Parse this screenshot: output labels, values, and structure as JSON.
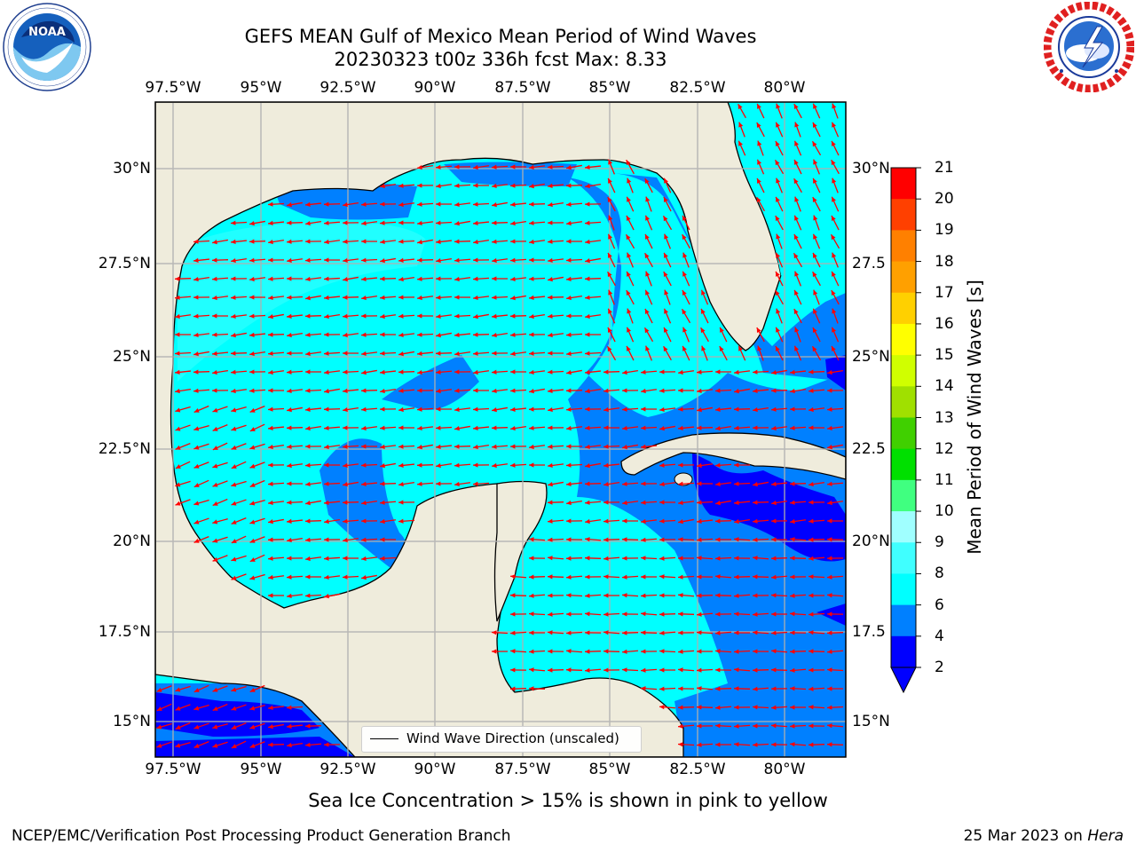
{
  "title": {
    "line1": "GEFS MEAN Gulf of Mexico Mean Period of Wind Waves",
    "line2": "20230323 t00z 336h fcst   Max: 8.33"
  },
  "logos": {
    "noaa": {
      "text": "NOAA",
      "ring_text": "NATIONAL OCEANIC AND ATMOSPHERIC ADMINISTRATION · U.S. DEPARTMENT OF COMMERCE",
      "icon": "noaa-logo"
    },
    "nws": {
      "ring_text": "NATIONAL WEATHER SERVICE",
      "icon": "nws-logo"
    }
  },
  "map": {
    "lon_ticks": [
      "97.5°W",
      "95°W",
      "92.5°W",
      "90°W",
      "87.5°W",
      "85°W",
      "82.5°W",
      "80°W"
    ],
    "lat_ticks": [
      "30°N",
      "27.5°N",
      "25°N",
      "22.5°N",
      "20°N",
      "17.5°N",
      "15°N"
    ],
    "lat_ticks_right": [
      "30°N",
      "27.5",
      "25°N",
      "22.5",
      "20°N",
      "17.5",
      "15°N"
    ],
    "land_color": "#efecdc",
    "arrow_color": "#ff0000",
    "legend_label": "Wind Wave Direction (unscaled)"
  },
  "colorbar": {
    "label": "Mean Period of Wind Waves [s]",
    "ticks": [
      "2",
      "4",
      "6",
      "8",
      "9",
      "10",
      "11",
      "12",
      "13",
      "14",
      "15",
      "16",
      "17",
      "18",
      "19",
      "20",
      "21"
    ],
    "colors": [
      "#0000ff",
      "#0080ff",
      "#00ffff",
      "#40ffff",
      "#a0ffff",
      "#40ff80",
      "#00e000",
      "#40d000",
      "#a0e000",
      "#d0ff00",
      "#ffff00",
      "#ffd000",
      "#ffa000",
      "#ff8000",
      "#ff4000",
      "#ff0000"
    ]
  },
  "sea_ice_note": "Sea Ice Concentration > 15% is shown in pink to yellow",
  "footer": {
    "left": "NCEP/EMC/Verification Post Processing Product Generation Branch",
    "right_date": "25 Mar 2023 on ",
    "right_host": "Hera"
  }
}
